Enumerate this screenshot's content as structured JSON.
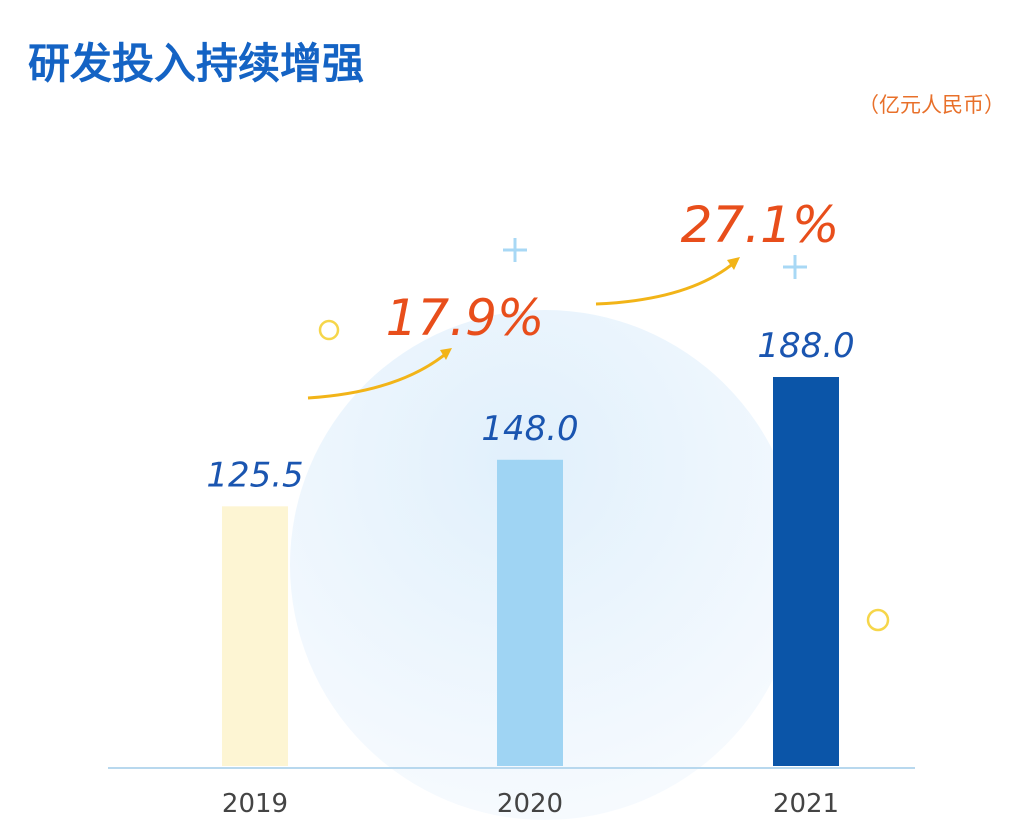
{
  "chart_data": {
    "type": "bar",
    "title": "研发投入持续增强",
    "subtitle": "（亿元人民币）",
    "categories": [
      "2019",
      "2020",
      "2021"
    ],
    "values": [
      125.5,
      148,
      188
    ],
    "value_labels": [
      "125.5",
      "148.0",
      "188.0"
    ],
    "colors": [
      "#fdf5d3",
      "#9fd4f3",
      "#0b55a8"
    ],
    "annotations": [
      "17.9%",
      "27.1%"
    ]
  }
}
